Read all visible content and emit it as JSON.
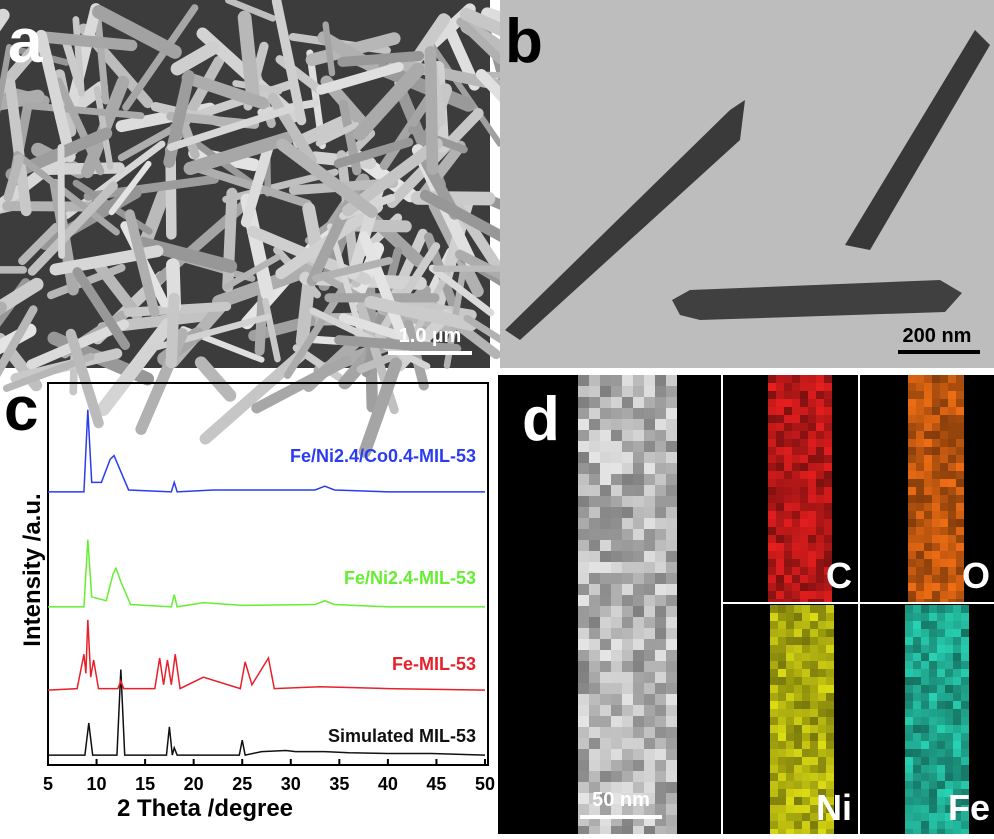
{
  "panels": {
    "a": {
      "label": "a",
      "scale_bar": "1.0 µm"
    },
    "b": {
      "label": "b",
      "scale_bar": "200 nm"
    },
    "c": {
      "label": "c"
    },
    "d": {
      "label": "d",
      "scale_bar": "50 nm",
      "maps": [
        "C",
        "O",
        "Ni",
        "Fe"
      ]
    }
  },
  "chart_data": {
    "type": "line",
    "xlabel": "2 Theta /degree",
    "ylabel": "Intensity /a.u.",
    "xlim": [
      5,
      50
    ],
    "xticks": [
      5,
      10,
      15,
      20,
      25,
      30,
      35,
      40,
      45,
      50
    ],
    "ylim": [
      0,
      100
    ],
    "series": [
      {
        "name": "Simulated MIL-53",
        "color": "#111111",
        "x": [
          5,
          8.8,
          9.2,
          9.6,
          12.1,
          12.5,
          12.9,
          17.2,
          17.5,
          17.8,
          18.0,
          18.3,
          24.7,
          25.0,
          25.3,
          27,
          29.5,
          30.5,
          33.5,
          36,
          40,
          44.5,
          50
        ],
        "values": [
          2.6,
          2.6,
          11,
          2.6,
          2.6,
          25,
          2.6,
          2.6,
          10,
          2.6,
          4.5,
          2.6,
          2.6,
          6.5,
          2.6,
          3.5,
          3.8,
          3.5,
          3.5,
          3.2,
          3.0,
          3.0,
          2.6
        ]
      },
      {
        "name": "Fe-MIL-53",
        "color": "#e8202a",
        "x": [
          5,
          8,
          8.7,
          8.9,
          9.1,
          9.4,
          9.7,
          10.2,
          12.2,
          12.5,
          12.8,
          16,
          16.5,
          16.9,
          17.3,
          17.7,
          18.1,
          18.6,
          21,
          24.8,
          25.3,
          26,
          27.7,
          28.3,
          33,
          40,
          50
        ],
        "values": [
          19.6,
          20,
          29,
          24,
          38,
          23,
          27.5,
          20,
          20,
          22,
          20,
          20,
          28,
          21,
          27.5,
          21,
          29,
          20,
          23,
          20,
          27,
          21,
          28,
          20,
          20.5,
          20,
          19.6
        ]
      },
      {
        "name": "Fe/Ni2.4-MIL-53",
        "color": "#66ee33",
        "x": [
          5,
          8.7,
          9.1,
          9.5,
          11,
          11.7,
          12.0,
          12.5,
          13.5,
          17.7,
          18.0,
          18.3,
          21,
          25,
          32.5,
          33.5,
          34.5,
          40,
          50
        ],
        "values": [
          41.4,
          41.4,
          59,
          44,
          43,
          50,
          51.5,
          48,
          42,
          41.4,
          44.6,
          41.4,
          42.5,
          41.8,
          42,
          43,
          42,
          41.4,
          41.4
        ]
      },
      {
        "name": "Fe/Ni2.4/Co0.4-MIL-53",
        "color": "#2a3cf0",
        "x": [
          5,
          8.7,
          9.1,
          9.5,
          10.5,
          11.4,
          11.8,
          12.3,
          13.3,
          17.7,
          18.0,
          18.3,
          22,
          32.5,
          33.5,
          34.5,
          40,
          50
        ],
        "values": [
          71.5,
          71.5,
          93,
          74,
          74,
          80,
          81,
          78,
          72,
          71.5,
          74,
          71.5,
          72,
          72,
          73,
          72,
          71.5,
          71.5
        ]
      }
    ]
  }
}
